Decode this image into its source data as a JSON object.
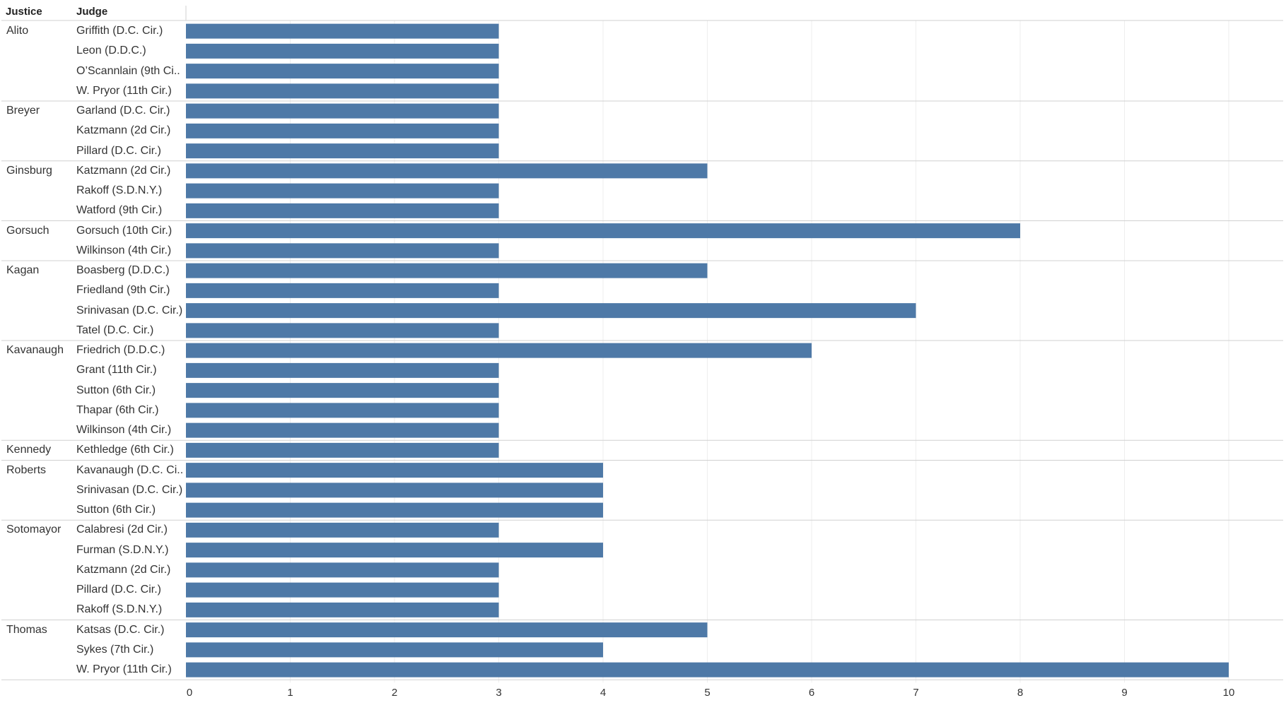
{
  "headers": {
    "justice": "Justice",
    "judge": "Judge"
  },
  "colors": {
    "bar": "#4e79a7",
    "grid": "#eeeeee",
    "separator": "#d0d0d0",
    "text": "#333333"
  },
  "chart_data": {
    "type": "bar",
    "orientation": "horizontal",
    "xlim": [
      0,
      10
    ],
    "xticks": [
      "0",
      "1",
      "2",
      "3",
      "4",
      "5",
      "6",
      "7",
      "8",
      "9",
      "10"
    ],
    "grid": true,
    "groups": [
      {
        "justice": "Alito",
        "rows": [
          {
            "judge": "Griffith (D.C. Cir.)",
            "value": 3
          },
          {
            "judge": "Leon (D.D.C.)",
            "value": 3
          },
          {
            "judge": "O’Scannlain (9th Ci..",
            "value": 3
          },
          {
            "judge": "W. Pryor (11th Cir.)",
            "value": 3
          }
        ]
      },
      {
        "justice": "Breyer",
        "rows": [
          {
            "judge": "Garland (D.C. Cir.)",
            "value": 3
          },
          {
            "judge": "Katzmann (2d Cir.)",
            "value": 3
          },
          {
            "judge": "Pillard (D.C. Cir.)",
            "value": 3
          }
        ]
      },
      {
        "justice": "Ginsburg",
        "rows": [
          {
            "judge": "Katzmann (2d Cir.)",
            "value": 5
          },
          {
            "judge": "Rakoff (S.D.N.Y.)",
            "value": 3
          },
          {
            "judge": "Watford (9th Cir.)",
            "value": 3
          }
        ]
      },
      {
        "justice": "Gorsuch",
        "rows": [
          {
            "judge": "Gorsuch (10th Cir.)",
            "value": 8
          },
          {
            "judge": "Wilkinson (4th Cir.)",
            "value": 3
          }
        ]
      },
      {
        "justice": "Kagan",
        "rows": [
          {
            "judge": "Boasberg (D.D.C.)",
            "value": 5
          },
          {
            "judge": "Friedland (9th Cir.)",
            "value": 3
          },
          {
            "judge": "Srinivasan (D.C. Cir.)",
            "value": 7
          },
          {
            "judge": "Tatel (D.C. Cir.)",
            "value": 3
          }
        ]
      },
      {
        "justice": "Kavanaugh",
        "rows": [
          {
            "judge": "Friedrich (D.D.C.)",
            "value": 6
          },
          {
            "judge": "Grant (11th Cir.)",
            "value": 3
          },
          {
            "judge": "Sutton (6th Cir.)",
            "value": 3
          },
          {
            "judge": "Thapar (6th Cir.)",
            "value": 3
          },
          {
            "judge": "Wilkinson (4th Cir.)",
            "value": 3
          }
        ]
      },
      {
        "justice": "Kennedy",
        "rows": [
          {
            "judge": "Kethledge (6th Cir.)",
            "value": 3
          }
        ]
      },
      {
        "justice": "Roberts",
        "rows": [
          {
            "judge": "Kavanaugh (D.C. Ci..",
            "value": 4
          },
          {
            "judge": "Srinivasan (D.C. Cir.)",
            "value": 4
          },
          {
            "judge": "Sutton (6th Cir.)",
            "value": 4
          }
        ]
      },
      {
        "justice": "Sotomayor",
        "rows": [
          {
            "judge": "Calabresi (2d Cir.)",
            "value": 3
          },
          {
            "judge": "Furman (S.D.N.Y.)",
            "value": 4
          },
          {
            "judge": "Katzmann (2d Cir.)",
            "value": 3
          },
          {
            "judge": "Pillard (D.C. Cir.)",
            "value": 3
          },
          {
            "judge": "Rakoff (S.D.N.Y.)",
            "value": 3
          }
        ]
      },
      {
        "justice": "Thomas",
        "rows": [
          {
            "judge": "Katsas (D.C. Cir.)",
            "value": 5
          },
          {
            "judge": "Sykes (7th Cir.)",
            "value": 4
          },
          {
            "judge": "W. Pryor (11th Cir.)",
            "value": 10
          }
        ]
      }
    ]
  }
}
